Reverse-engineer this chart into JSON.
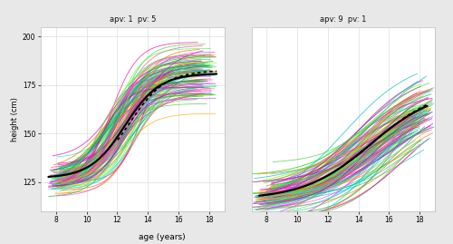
{
  "panel1_title": "apv: 1  pv: 5",
  "panel2_title": "apv: 9  pv: 1",
  "xlabel": "age (years)",
  "ylabel": "height (cm)",
  "xlim": [
    7,
    19
  ],
  "ylim": [
    110,
    205
  ],
  "yticks": [
    125,
    150,
    175,
    200
  ],
  "xticks": [
    8,
    10,
    12,
    14,
    16,
    18
  ],
  "n1": 116,
  "n2": 117,
  "outer_bg": "#e8e8e8",
  "panel_bg": "#ffffff",
  "header_bg": "#c8c8c8",
  "grid_color": "#dddddd",
  "line_colors": [
    "#ff00ff",
    "#00cc00",
    "#00cccc",
    "#ff8800",
    "#00ff88",
    "#ff44ff",
    "#44ff44",
    "#cc00cc",
    "#00aa44",
    "#ff4499",
    "#33dddd",
    "#ffaa00",
    "#cc00cc",
    "#88ee00",
    "#00bbbb",
    "#ff6600",
    "#44cc44",
    "#ff0099",
    "#00ff44",
    "#cc44ff"
  ],
  "solid_curve_color": "#000000",
  "dotted_curve_color": "#000000",
  "line_alpha": 0.75,
  "line_width": 0.6
}
